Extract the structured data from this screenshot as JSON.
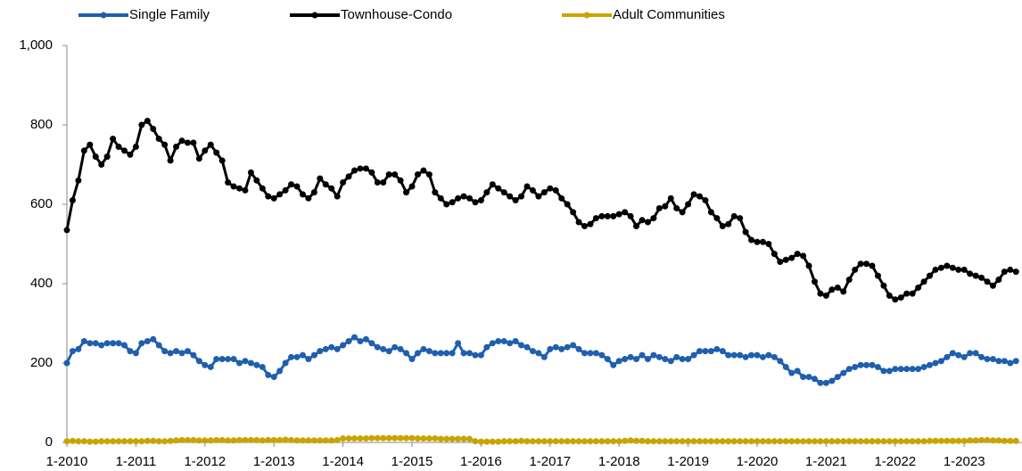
{
  "chart_data": {
    "type": "line",
    "categories": [
      "1-2010",
      null,
      null,
      null,
      null,
      null,
      null,
      null,
      null,
      null,
      null,
      null,
      "1-2011",
      null,
      null,
      null,
      null,
      null,
      null,
      null,
      null,
      null,
      null,
      null,
      "1-2012",
      null,
      null,
      null,
      null,
      null,
      null,
      null,
      null,
      null,
      null,
      null,
      "1-2013",
      null,
      null,
      null,
      null,
      null,
      null,
      null,
      null,
      null,
      null,
      null,
      "1-2014",
      null,
      null,
      null,
      null,
      null,
      null,
      null,
      null,
      null,
      null,
      null,
      "1-2015",
      null,
      null,
      null,
      null,
      null,
      null,
      null,
      null,
      null,
      null,
      null,
      "1-2016",
      null,
      null,
      null,
      null,
      null,
      null,
      null,
      null,
      null,
      null,
      null,
      "1-2017",
      null,
      null,
      null,
      null,
      null,
      null,
      null,
      null,
      null,
      null,
      null,
      "1-2018",
      null,
      null,
      null,
      null,
      null,
      null,
      null,
      null,
      null,
      null,
      null,
      "1-2019",
      null,
      null,
      null,
      null,
      null,
      null,
      null,
      null,
      null,
      null,
      null,
      "1-2020",
      null,
      null,
      null,
      null,
      null,
      null,
      null,
      null,
      null,
      null,
      null,
      "1-2021",
      null,
      null,
      null,
      null,
      null,
      null,
      null,
      null,
      null,
      null,
      null,
      "1-2022",
      null,
      null,
      null,
      null,
      null,
      null,
      null,
      null,
      null,
      null,
      null,
      "1-2023",
      null,
      null,
      null,
      null,
      null,
      null,
      null,
      null,
      null
    ],
    "series": [
      {
        "name": "Single Family",
        "color": "#1f5fad",
        "values": [
          200,
          230,
          235,
          255,
          250,
          250,
          245,
          250,
          250,
          250,
          245,
          230,
          225,
          250,
          255,
          260,
          245,
          230,
          225,
          230,
          225,
          230,
          220,
          205,
          195,
          190,
          210,
          210,
          210,
          210,
          200,
          205,
          200,
          195,
          190,
          170,
          165,
          180,
          200,
          215,
          215,
          220,
          210,
          220,
          230,
          235,
          240,
          235,
          245,
          255,
          265,
          255,
          260,
          250,
          240,
          235,
          230,
          240,
          235,
          225,
          210,
          225,
          235,
          230,
          225,
          225,
          225,
          225,
          250,
          225,
          225,
          220,
          220,
          240,
          250,
          255,
          255,
          250,
          255,
          245,
          240,
          230,
          225,
          215,
          235,
          240,
          235,
          240,
          245,
          235,
          225,
          225,
          225,
          220,
          210,
          195,
          205,
          210,
          215,
          210,
          220,
          210,
          220,
          215,
          210,
          205,
          215,
          210,
          210,
          220,
          230,
          230,
          230,
          235,
          230,
          220,
          220,
          220,
          215,
          220,
          220,
          215,
          220,
          215,
          205,
          190,
          175,
          180,
          165,
          165,
          160,
          150,
          150,
          155,
          165,
          175,
          185,
          190,
          195,
          195,
          195,
          190,
          180,
          180,
          185,
          185,
          185,
          185,
          185,
          190,
          195,
          200,
          205,
          215,
          225,
          220,
          215,
          225,
          225,
          215,
          210,
          210,
          205,
          205,
          200,
          205
        ]
      },
      {
        "name": "Townhouse-Condo",
        "color": "#000000",
        "values": [
          535,
          610,
          660,
          735,
          750,
          720,
          700,
          720,
          765,
          745,
          735,
          725,
          745,
          800,
          810,
          790,
          765,
          750,
          710,
          745,
          760,
          755,
          755,
          715,
          735,
          750,
          730,
          710,
          655,
          645,
          640,
          635,
          680,
          660,
          640,
          620,
          615,
          625,
          635,
          650,
          645,
          625,
          615,
          630,
          665,
          650,
          640,
          620,
          655,
          670,
          685,
          690,
          690,
          680,
          655,
          655,
          675,
          675,
          660,
          630,
          645,
          675,
          685,
          675,
          630,
          615,
          600,
          605,
          615,
          620,
          615,
          605,
          610,
          630,
          650,
          640,
          630,
          620,
          610,
          620,
          645,
          635,
          620,
          630,
          640,
          635,
          615,
          600,
          580,
          555,
          545,
          550,
          565,
          570,
          570,
          570,
          575,
          580,
          570,
          545,
          560,
          555,
          565,
          590,
          595,
          615,
          590,
          580,
          600,
          625,
          620,
          610,
          580,
          565,
          545,
          550,
          570,
          565,
          530,
          510,
          505,
          505,
          500,
          475,
          455,
          460,
          465,
          475,
          470,
          445,
          405,
          375,
          370,
          385,
          390,
          380,
          410,
          435,
          450,
          450,
          445,
          420,
          395,
          370,
          360,
          365,
          375,
          375,
          390,
          405,
          420,
          435,
          440,
          445,
          440,
          435,
          435,
          425,
          420,
          415,
          405,
          395,
          410,
          430,
          435,
          430
        ]
      },
      {
        "name": "Adult Communities",
        "color": "#c9a400",
        "values": [
          3,
          4,
          3,
          3,
          2,
          2,
          3,
          3,
          3,
          3,
          3,
          3,
          3,
          3,
          4,
          4,
          3,
          3,
          4,
          5,
          6,
          6,
          6,
          5,
          5,
          5,
          6,
          6,
          5,
          5,
          6,
          6,
          6,
          6,
          5,
          6,
          6,
          6,
          7,
          6,
          5,
          5,
          5,
          5,
          5,
          5,
          5,
          6,
          10,
          10,
          10,
          10,
          10,
          11,
          11,
          11,
          11,
          11,
          11,
          11,
          11,
          10,
          10,
          10,
          10,
          9,
          9,
          9,
          9,
          9,
          9,
          3,
          2,
          2,
          2,
          2,
          3,
          3,
          3,
          4,
          3,
          3,
          3,
          3,
          3,
          3,
          3,
          3,
          3,
          3,
          3,
          3,
          3,
          3,
          3,
          3,
          3,
          4,
          5,
          4,
          4,
          3,
          3,
          3,
          3,
          3,
          3,
          3,
          3,
          3,
          3,
          3,
          3,
          3,
          3,
          3,
          3,
          3,
          3,
          3,
          3,
          3,
          3,
          3,
          3,
          3,
          3,
          3,
          3,
          3,
          3,
          3,
          3,
          3,
          3,
          3,
          3,
          3,
          3,
          3,
          3,
          3,
          3,
          3,
          3,
          3,
          3,
          3,
          3,
          3,
          4,
          4,
          4,
          4,
          4,
          4,
          4,
          5,
          5,
          6,
          6,
          5,
          5,
          4,
          4,
          4
        ]
      }
    ],
    "ylim": [
      0,
      1000
    ],
    "yticks": [
      0,
      200,
      400,
      600,
      800,
      {
        "value": 1000,
        "label": "1,000"
      }
    ],
    "grid": false,
    "legend": "top"
  }
}
